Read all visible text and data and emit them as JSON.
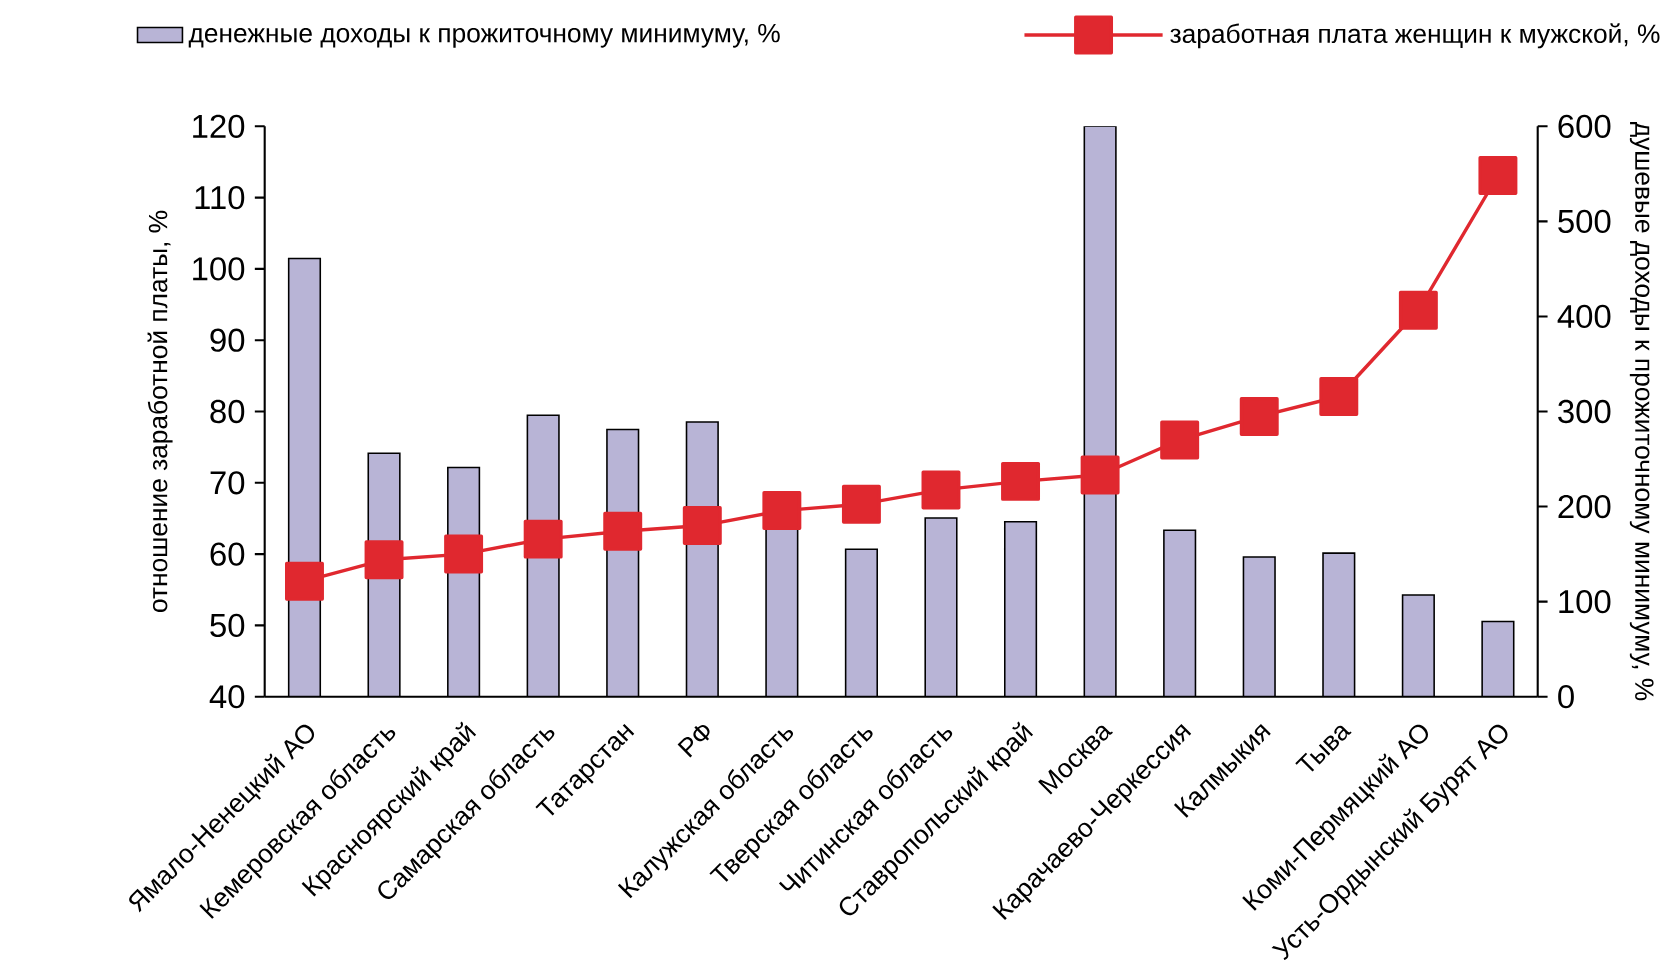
{
  "chart_data": {
    "type": "bar",
    "categories": [
      "Ямало-Ненецкий АО",
      "Кемеровская область",
      "Красноярский край",
      "Самарская область",
      "Татарстан",
      "РФ",
      "Калужская область",
      "Тверская область",
      "Читинская область",
      "Ставропольский край",
      "Москва",
      "Карачаево-Черкессия",
      "Калмыкия",
      "Тыва",
      "Коми-Пермяцкий АО",
      "Усть-Ордынский Бурят АО"
    ],
    "series": [
      {
        "name": "денежные доходы к прожиточному минимуму, %",
        "axis": "y2",
        "color": "#b8b4d6",
        "values": [
          461,
          256,
          241,
          296,
          281,
          289,
          177,
          155,
          188,
          184,
          600,
          175,
          147,
          151,
          107,
          79
        ]
      },
      {
        "name": "заработная плата женщин к мужской, %",
        "type": "line",
        "axis": "y",
        "color": "#e0282f",
        "marker": "square",
        "line_style": "solid",
        "values": [
          56.2,
          59.2,
          60,
          62.1,
          63.2,
          64,
          66.1,
          67,
          69,
          70.2,
          71.1,
          76,
          79.3,
          82.1,
          94.2,
          113.1
        ]
      }
    ],
    "ylabel": "отношение заработной платы, %",
    "y2label": "душевые доходы к прожиточному минимуму, %",
    "ylim": [
      40,
      120
    ],
    "yticks": [
      40,
      50,
      60,
      70,
      80,
      90,
      100,
      110,
      120
    ],
    "y2lim": [
      0,
      600
    ],
    "y2ticks": [
      0,
      100,
      200,
      300,
      400,
      500,
      600
    ],
    "legend": "top",
    "grid": false
  }
}
